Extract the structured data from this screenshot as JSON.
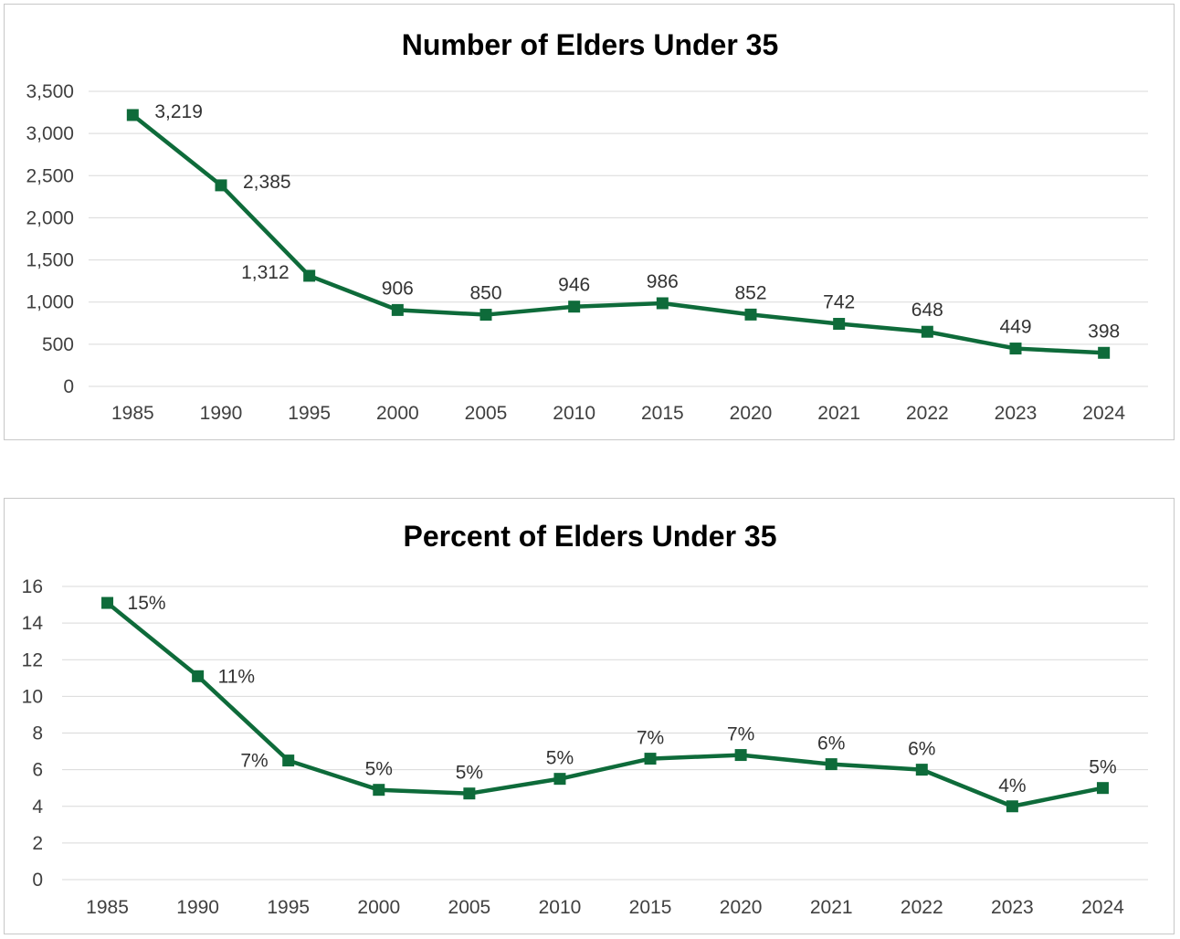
{
  "colors": {
    "series": "#0e6b3a",
    "grid": "#d9d9d9",
    "text": "#404040"
  },
  "chart_data": [
    {
      "type": "line",
      "title": "Number of Elders Under 35",
      "categories": [
        "1985",
        "1990",
        "1995",
        "2000",
        "2005",
        "2010",
        "2015",
        "2020",
        "2021",
        "2022",
        "2023",
        "2024"
      ],
      "values": [
        3219,
        2385,
        1312,
        906,
        850,
        946,
        986,
        852,
        742,
        648,
        449,
        398
      ],
      "data_labels": [
        "3,219",
        "2,385",
        "1,312",
        "906",
        "850",
        "946",
        "986",
        "852",
        "742",
        "648",
        "449",
        "398"
      ],
      "yticks": [
        "0",
        "500",
        "1,000",
        "1,500",
        "2,000",
        "2,500",
        "3,000",
        "3,500"
      ],
      "ylim": [
        0,
        3500
      ],
      "grid": true,
      "marker": "square"
    },
    {
      "type": "line",
      "title": "Percent of Elders Under 35",
      "categories": [
        "1985",
        "1990",
        "1995",
        "2000",
        "2005",
        "2010",
        "2015",
        "2020",
        "2021",
        "2022",
        "2023",
        "2024"
      ],
      "values": [
        15.1,
        11.1,
        6.5,
        4.9,
        4.7,
        5.5,
        6.6,
        6.8,
        6.3,
        6.0,
        4.0,
        5.0
      ],
      "data_labels": [
        "15%",
        "11%",
        "7%",
        "5%",
        "5%",
        "5%",
        "7%",
        "7%",
        "6%",
        "6%",
        "4%",
        "5%"
      ],
      "yticks": [
        "0",
        "2",
        "4",
        "6",
        "8",
        "10",
        "12",
        "14",
        "16"
      ],
      "ylim": [
        0,
        16
      ],
      "grid": true,
      "marker": "square"
    }
  ]
}
